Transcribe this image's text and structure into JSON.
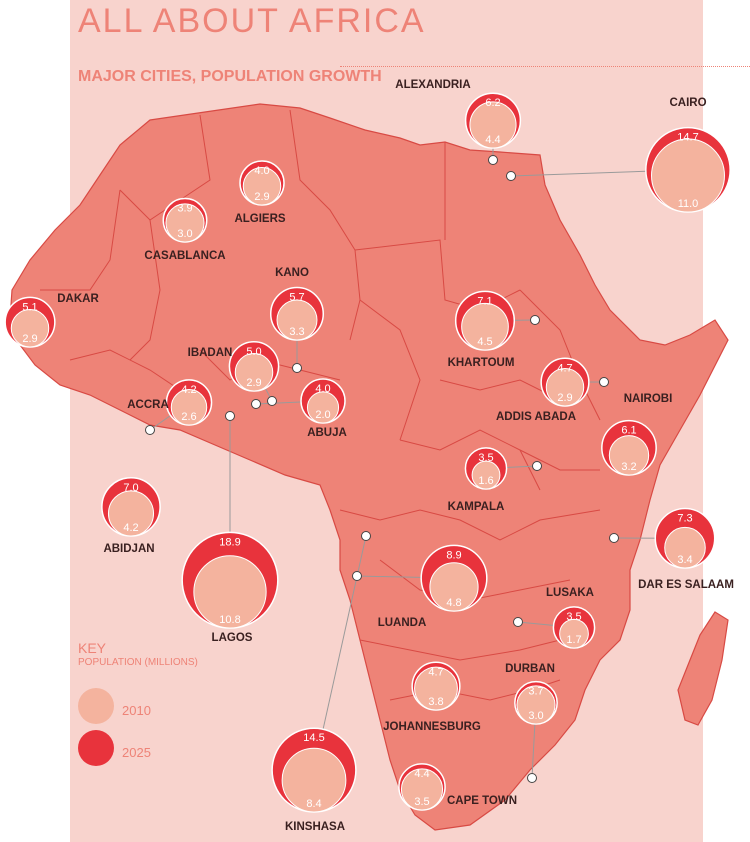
{
  "title": "ALL ABOUT AFRICA",
  "subtitle": "MAJOR CITIES, POPULATION GROWTH",
  "colors": {
    "panel": "#f8d3cd",
    "land": "#ee8377",
    "border": "#d84a44",
    "pop2010": "#f4b39e",
    "pop2025": "#e8333c",
    "text": "#3a2020"
  },
  "key": {
    "title": "KEY",
    "subtitle": "POPULATION (MILLIONS)",
    "items": [
      {
        "label": "2010",
        "color": "#f4b39e"
      },
      {
        "label": "2025",
        "color": "#e8333c"
      }
    ]
  },
  "cities": [
    {
      "name": "ALEXANDRIA",
      "pop2010": 4.4,
      "pop2025": 6.2
    },
    {
      "name": "CAIRO",
      "pop2010": 11.0,
      "pop2025": 14.7
    },
    {
      "name": "ALGIERS",
      "pop2010": 2.9,
      "pop2025": 4.0
    },
    {
      "name": "CASABLANCA",
      "pop2010": 3.0,
      "pop2025": 3.9
    },
    {
      "name": "DAKAR",
      "pop2010": 2.9,
      "pop2025": 5.1
    },
    {
      "name": "KANO",
      "pop2010": 3.3,
      "pop2025": 5.7
    },
    {
      "name": "KHARTOUM",
      "pop2010": 4.5,
      "pop2025": 7.1
    },
    {
      "name": "IBADAN",
      "pop2010": 2.9,
      "pop2025": 5.0
    },
    {
      "name": "ACCRA",
      "pop2010": 2.6,
      "pop2025": 4.2
    },
    {
      "name": "ABUJA",
      "pop2010": 2.0,
      "pop2025": 4.0
    },
    {
      "name": "ADDIS ABADA",
      "pop2010": 2.9,
      "pop2025": 4.7
    },
    {
      "name": "NAIROBI",
      "pop2010": 3.2,
      "pop2025": 6.1
    },
    {
      "name": "KAMPALA",
      "pop2010": 1.6,
      "pop2025": 3.5
    },
    {
      "name": "ABIDJAN",
      "pop2010": 4.2,
      "pop2025": 7.0
    },
    {
      "name": "LAGOS",
      "pop2010": 10.8,
      "pop2025": 18.9
    },
    {
      "name": "DAR ES SALAAM",
      "pop2010": 3.4,
      "pop2025": 7.3
    },
    {
      "name": "LUANDA",
      "pop2010": 4.8,
      "pop2025": 8.9
    },
    {
      "name": "LUSAKA",
      "pop2010": 1.7,
      "pop2025": 3.5
    },
    {
      "name": "JOHANNESBURG",
      "pop2010": 3.8,
      "pop2025": 4.7
    },
    {
      "name": "DURBAN",
      "pop2010": 3.0,
      "pop2025": 3.7
    },
    {
      "name": "KINSHASA",
      "pop2010": 8.4,
      "pop2025": 14.5
    },
    {
      "name": "CAPE TOWN",
      "pop2010": 3.5,
      "pop2025": 4.4
    }
  ]
}
